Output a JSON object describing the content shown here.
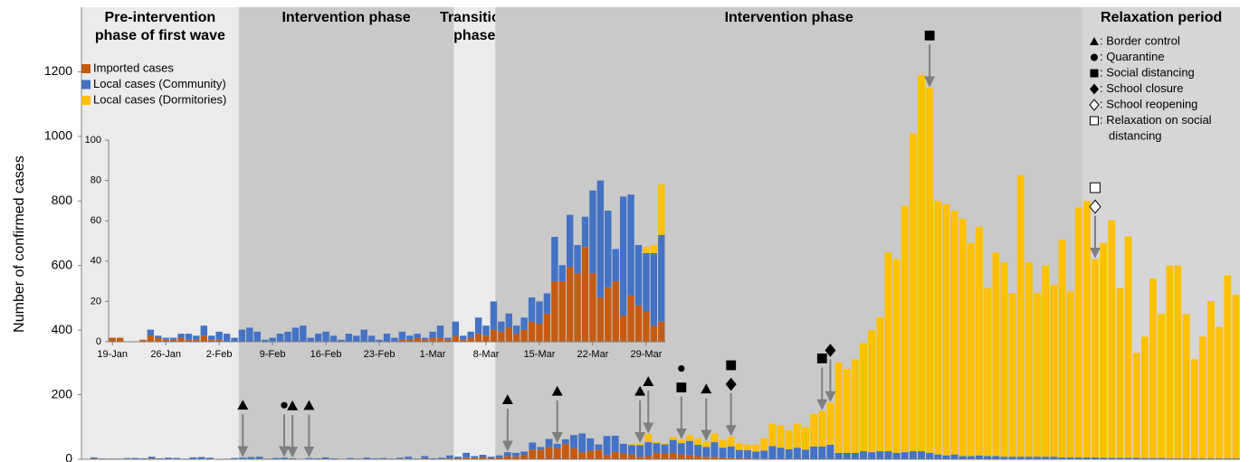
{
  "chart_data": [
    {
      "type": "bar",
      "stacked": true,
      "ylabel": "Number of confirmed cases",
      "ylim": [
        0,
        1400
      ],
      "yticks": [
        0,
        200,
        400,
        600,
        800,
        1000,
        1200
      ],
      "legend": "top-left",
      "series": [
        {
          "name": "Imported cases",
          "color": "#c55a11",
          "values": [
            1,
            3,
            2,
            1,
            1,
            2,
            1,
            1,
            3,
            1,
            1,
            0,
            0,
            0,
            0,
            0,
            0,
            0,
            0,
            0,
            0,
            0,
            0,
            0,
            0,
            0,
            0,
            0,
            0,
            0,
            0,
            0,
            0,
            0,
            1,
            1,
            2,
            1,
            2,
            2,
            1,
            3,
            1,
            2,
            4,
            3,
            6,
            5,
            7,
            4,
            6,
            10,
            9,
            14,
            30,
            30,
            37,
            34,
            47,
            34,
            22,
            27,
            30,
            13,
            23,
            18,
            15,
            8,
            10,
            20,
            18,
            20,
            15,
            12,
            10,
            8,
            8,
            6,
            5,
            4,
            3,
            2,
            2,
            1,
            1,
            1,
            1,
            0,
            0,
            0,
            0,
            0,
            0,
            0,
            0,
            0,
            0,
            0,
            0,
            0,
            0,
            0,
            0,
            0,
            0,
            0,
            0,
            0,
            0,
            0,
            0,
            0,
            0,
            0,
            0,
            0,
            0,
            0,
            0,
            0,
            0,
            0,
            0,
            0,
            0,
            0,
            0,
            0,
            0,
            0,
            0,
            0,
            0,
            0,
            0,
            0,
            0,
            0,
            0,
            0
          ]
        },
        {
          "name": "Local cases (Community)",
          "color": "#4472c4",
          "values": [
            0,
            3,
            1,
            1,
            1,
            2,
            3,
            2,
            5,
            2,
            4,
            4,
            2,
            6,
            7,
            5,
            1,
            2,
            4,
            5,
            7,
            8,
            2,
            4,
            5,
            3,
            1,
            4,
            3,
            6,
            3,
            1,
            4,
            2,
            4,
            2,
            2,
            1,
            3,
            6,
            1,
            7,
            2,
            3,
            8,
            5,
            14,
            5,
            7,
            4,
            6,
            12,
            11,
            10,
            22,
            8,
            26,
            14,
            15,
            41,
            58,
            38,
            16,
            59,
            50,
            30,
            29,
            36,
            43,
            30,
            28,
            40,
            35,
            45,
            35,
            30,
            45,
            30,
            35,
            25,
            25,
            22,
            25,
            40,
            35,
            30,
            35,
            30,
            40,
            40,
            45,
            20,
            20,
            20,
            25,
            22,
            25,
            25,
            20,
            22,
            25,
            25,
            20,
            15,
            12,
            15,
            10,
            10,
            12,
            10,
            10,
            8,
            8,
            8,
            8,
            8,
            8,
            8,
            6,
            6,
            6,
            6,
            6,
            5,
            5,
            5,
            5,
            5,
            4,
            4,
            4,
            3,
            3,
            3,
            3,
            3,
            3,
            3,
            3,
            3
          ]
        },
        {
          "name": "Local cases (Dormitories)",
          "color": "#ffc000",
          "values": [
            0,
            0,
            0,
            0,
            0,
            0,
            0,
            0,
            0,
            0,
            0,
            0,
            0,
            0,
            0,
            0,
            0,
            0,
            0,
            0,
            0,
            0,
            0,
            0,
            0,
            0,
            0,
            0,
            0,
            0,
            0,
            0,
            0,
            0,
            0,
            0,
            0,
            0,
            0,
            0,
            0,
            0,
            0,
            0,
            0,
            0,
            0,
            0,
            0,
            0,
            0,
            0,
            0,
            0,
            0,
            0,
            0,
            0,
            0,
            0,
            0,
            0,
            0,
            0,
            0,
            0,
            3,
            4,
            25,
            5,
            4,
            10,
            10,
            18,
            20,
            17,
            27,
            24,
            30,
            21,
            17,
            21,
            38,
            69,
            69,
            59,
            74,
            70,
            100,
            110,
            130,
            280,
            260,
            290,
            335,
            378,
            415,
            615,
            600,
            763,
            985,
            1165,
            1130,
            785,
            778,
            755,
            735,
            660,
            708,
            520,
            630,
            602,
            507,
            872,
            602,
            507,
            592,
            532,
            674,
            514,
            774,
            794,
            614,
            665,
            735,
            525,
            685,
            325,
            376,
            556,
            446,
            597,
            597,
            447,
            307,
            377,
            487,
            407,
            567,
            507
          ]
        }
      ],
      "phases": [
        {
          "label": [
            "Pre-intervention",
            "phase of first wave"
          ],
          "start": 0,
          "end": 19,
          "color": "#ebebeb"
        },
        {
          "label": [
            "Intervention phase"
          ],
          "start": 19,
          "end": 45,
          "color": "#c9c9c9"
        },
        {
          "label": [
            "Transition",
            "phase"
          ],
          "start": 45,
          "end": 50,
          "color": "#ebebeb"
        },
        {
          "label": [
            "Intervention phase"
          ],
          "start": 50,
          "end": 121,
          "color": "#c9c9c9"
        },
        {
          "label": [
            "Relaxation period"
          ],
          "start": 121,
          "end": 140,
          "color": "#d6d6d6"
        }
      ],
      "measure_legend": [
        {
          "symbol": "triangle",
          "label": [
            ": Border control"
          ]
        },
        {
          "symbol": "circle",
          "label": [
            ": Quarantine"
          ]
        },
        {
          "symbol": "square",
          "label": [
            ": Social distancing"
          ]
        },
        {
          "symbol": "diamond",
          "label": [
            ": School closure"
          ]
        },
        {
          "symbol": "diamond-open",
          "label": [
            ": School reopening"
          ]
        },
        {
          "symbol": "square-open",
          "label": [
            ": Relaxation on social",
            "distancing"
          ]
        }
      ],
      "events": [
        {
          "index": 19,
          "symbols": [
            "triangle"
          ]
        },
        {
          "index": 24,
          "symbols": [
            "circle"
          ]
        },
        {
          "index": 25,
          "symbols": [
            "triangle"
          ]
        },
        {
          "index": 27,
          "symbols": [
            "triangle"
          ]
        },
        {
          "index": 51,
          "symbols": [
            "triangle"
          ]
        },
        {
          "index": 57,
          "symbols": [
            "triangle"
          ]
        },
        {
          "index": 67,
          "symbols": [
            "triangle"
          ]
        },
        {
          "index": 68,
          "symbols": [
            "triangle"
          ]
        },
        {
          "index": 72,
          "symbols": [
            "circle",
            "square"
          ]
        },
        {
          "index": 75,
          "symbols": [
            "triangle"
          ]
        },
        {
          "index": 78,
          "symbols": [
            "square",
            "diamond"
          ]
        },
        {
          "index": 89,
          "symbols": [
            "square"
          ]
        },
        {
          "index": 90,
          "symbols": [
            "diamond"
          ]
        },
        {
          "index": 102,
          "symbols": [
            "square"
          ]
        },
        {
          "index": 122,
          "symbols": [
            "square-open",
            "diamond-open"
          ]
        }
      ]
    },
    {
      "type": "bar",
      "stacked": true,
      "ylim": [
        0,
        100
      ],
      "yticks": [
        0,
        20,
        40,
        60,
        80,
        100
      ],
      "categories": [
        "19-Jan",
        null,
        null,
        null,
        null,
        null,
        null,
        "26-Jan",
        null,
        null,
        null,
        null,
        null,
        null,
        "2-Feb",
        null,
        null,
        null,
        null,
        null,
        null,
        "9-Feb",
        null,
        null,
        null,
        null,
        null,
        null,
        "16-Feb",
        null,
        null,
        null,
        null,
        null,
        null,
        "23-Feb",
        null,
        null,
        null,
        null,
        null,
        null,
        "1-Mar",
        null,
        null,
        null,
        null,
        null,
        null,
        "8-Mar",
        null,
        null,
        null,
        null,
        null,
        null,
        "15-Mar",
        null,
        null,
        null,
        null,
        null,
        null,
        "22-Mar",
        null,
        null,
        null,
        null,
        null,
        null,
        "29-Mar",
        null,
        null
      ],
      "series": [
        {
          "color": "#c55a11",
          "values": [
            2,
            2,
            0,
            0,
            1,
            3,
            2,
            1,
            1,
            2,
            1,
            1,
            3,
            1,
            1,
            0,
            0,
            0,
            0,
            0,
            0,
            0,
            0,
            0,
            0,
            0,
            0,
            0,
            0,
            0,
            0,
            0,
            0,
            0,
            0,
            0,
            0,
            0,
            1,
            1,
            2,
            1,
            2,
            2,
            1,
            3,
            1,
            2,
            4,
            3,
            6,
            5,
            7,
            4,
            6,
            10,
            9,
            14,
            30,
            30,
            37,
            34,
            47,
            34,
            22,
            27,
            30,
            13,
            23,
            18,
            15,
            8,
            10
          ]
        },
        {
          "color": "#4472c4",
          "values": [
            0,
            0,
            0,
            0,
            0,
            3,
            1,
            1,
            1,
            2,
            3,
            2,
            5,
            2,
            4,
            4,
            2,
            6,
            7,
            5,
            1,
            2,
            4,
            5,
            7,
            8,
            2,
            4,
            5,
            3,
            1,
            4,
            3,
            6,
            3,
            1,
            4,
            2,
            4,
            2,
            2,
            1,
            3,
            6,
            1,
            7,
            2,
            3,
            8,
            5,
            14,
            5,
            7,
            4,
            6,
            12,
            11,
            10,
            22,
            8,
            26,
            14,
            15,
            41,
            58,
            38,
            16,
            59,
            50,
            30,
            29,
            36,
            43
          ]
        },
        {
          "color": "#ffc000",
          "values": [
            0,
            0,
            0,
            0,
            0,
            0,
            0,
            0,
            0,
            0,
            0,
            0,
            0,
            0,
            0,
            0,
            0,
            0,
            0,
            0,
            0,
            0,
            0,
            0,
            0,
            0,
            0,
            0,
            0,
            0,
            0,
            0,
            0,
            0,
            0,
            0,
            0,
            0,
            0,
            0,
            0,
            0,
            0,
            0,
            0,
            0,
            0,
            0,
            0,
            0,
            0,
            0,
            0,
            0,
            0,
            0,
            0,
            0,
            0,
            0,
            0,
            0,
            0,
            0,
            0,
            0,
            0,
            0,
            0,
            0,
            3,
            4,
            25
          ]
        }
      ]
    }
  ]
}
